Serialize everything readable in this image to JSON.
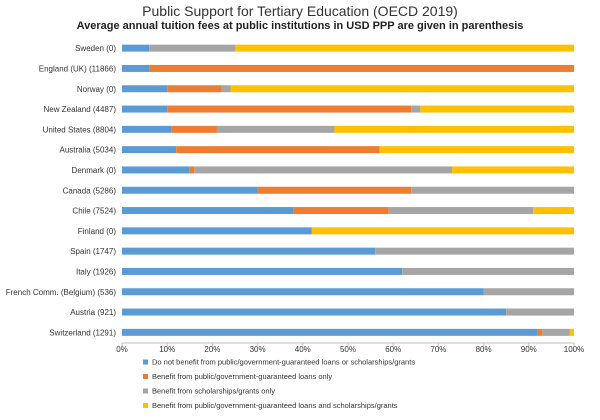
{
  "chart_data": {
    "type": "bar",
    "orientation": "horizontal",
    "stacked": true,
    "title": "Public Support for Tertiary Education (OECD 2019)",
    "subtitle": "Average annual tuition fees at public institutions in USD PPP are given in parenthesis",
    "xlim": [
      0,
      100
    ],
    "x_ticks": [
      "0%",
      "10%",
      "20%",
      "30%",
      "40%",
      "50%",
      "60%",
      "70%",
      "80%",
      "90%",
      "100%"
    ],
    "grid": false,
    "legend_position": "bottom",
    "categories": [
      "Sweden (0)",
      "England (UK) (11866)",
      "Norway (0)",
      "New Zealand (4487)",
      "United States (8804)",
      "Australia (5034)",
      "Denmark (0)",
      "Canada (5286)",
      "Chile (7524)",
      "Finland (0)",
      "Spain (1747)",
      "Italy (1926)",
      "French Comm. (Belgium) (536)",
      "Austria (921)",
      "Switzerland (1291)"
    ],
    "series": [
      {
        "name": "Do not benefit from public/government-guaranteed loans or scholarships/grants",
        "color": "#5B9BD5",
        "values": [
          6,
          6,
          10,
          10,
          11,
          12,
          15,
          30,
          38,
          42,
          56,
          62,
          80,
          85,
          92
        ]
      },
      {
        "name": "Benefit from public/government-guaranteed loans only",
        "color": "#ED7D31",
        "values": [
          0,
          94,
          12,
          54,
          10,
          45,
          1,
          34,
          21,
          0,
          0,
          0,
          0,
          0,
          1
        ]
      },
      {
        "name": "Benefit from scholarships/grants only",
        "color": "#A5A5A5",
        "values": [
          19,
          0,
          2,
          2,
          26,
          0,
          57,
          36,
          32,
          0,
          44,
          38,
          20,
          15,
          6
        ]
      },
      {
        "name": "Benefit from public/government-guaranteed loans and scholarships/grants",
        "color": "#FFC000",
        "values": [
          75,
          0,
          76,
          34,
          53,
          43,
          27,
          0,
          9,
          58,
          0,
          0,
          0,
          0,
          1
        ]
      }
    ]
  }
}
